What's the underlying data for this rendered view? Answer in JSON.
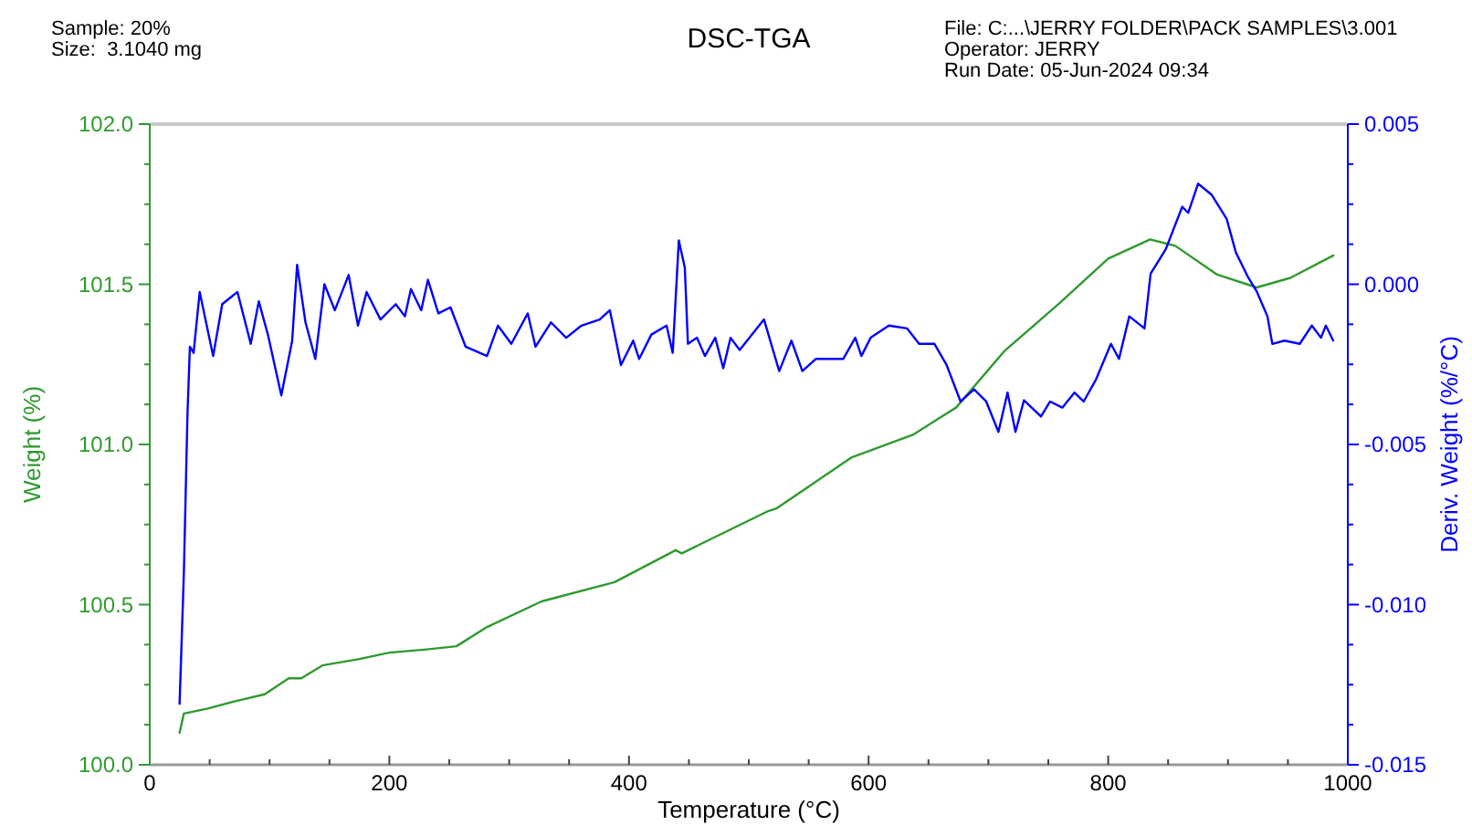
{
  "chart_data": {
    "type": "line",
    "title": "DSC-TGA",
    "xlabel": "Temperature (°C)",
    "ylabel": "Weight (%)",
    "y2label": "Deriv. Weight (%/°C)",
    "annotations": [
      "Sample: 20%",
      "Size:  3.1040 mg",
      "File: C:...\\JERRY FOLDER\\PACK SAMPLES\\3.001",
      "Operator: JERRY",
      "Run Date: 05-Jun-2024 09:34"
    ],
    "xlim": [
      0,
      1000
    ],
    "xticks": [
      0,
      {
        "value": 50,
        "label": null
      },
      {
        "value": 100,
        "label": null
      },
      {
        "value": 150,
        "label": null
      },
      200,
      {
        "value": 250,
        "label": null
      },
      {
        "value": 300,
        "label": null
      },
      {
        "value": 350,
        "label": null
      },
      400,
      {
        "value": 450,
        "label": null
      },
      {
        "value": 500,
        "label": null
      },
      {
        "value": 550,
        "label": null
      },
      600,
      {
        "value": 650,
        "label": null
      },
      {
        "value": 700,
        "label": null
      },
      {
        "value": 750,
        "label": null
      },
      800,
      {
        "value": 850,
        "label": null
      },
      {
        "value": 900,
        "label": null
      },
      {
        "value": 950,
        "label": null
      },
      1000
    ],
    "ylim": [
      100,
      102
    ],
    "yticks": [
      {
        "value": 100,
        "label": "100.0"
      },
      {
        "value": 100.125,
        "label": null
      },
      {
        "value": 100.25,
        "label": null
      },
      {
        "value": 100.375,
        "label": null
      },
      {
        "value": 100.5,
        "label": "100.5"
      },
      {
        "value": 100.625,
        "label": null
      },
      {
        "value": 100.75,
        "label": null
      },
      {
        "value": 100.875,
        "label": null
      },
      {
        "value": 101,
        "label": "101.0"
      },
      {
        "value": 101.125,
        "label": null
      },
      {
        "value": 101.25,
        "label": null
      },
      {
        "value": 101.375,
        "label": null
      },
      {
        "value": 101.5,
        "label": "101.5"
      },
      {
        "value": 101.625,
        "label": null
      },
      {
        "value": 101.75,
        "label": null
      },
      {
        "value": 101.875,
        "label": null
      },
      {
        "value": 102,
        "label": "102.0"
      }
    ],
    "y2lim": [
      -0.015,
      0.005
    ],
    "y2ticks": [
      {
        "value": -0.015,
        "label": "-0.015"
      },
      {
        "value": -0.01375,
        "label": null
      },
      {
        "value": -0.0125,
        "label": null
      },
      {
        "value": -0.01125,
        "label": null
      },
      {
        "value": -0.01,
        "label": "-0.010"
      },
      {
        "value": -0.00875,
        "label": null
      },
      {
        "value": -0.0075,
        "label": null
      },
      {
        "value": -0.00625,
        "label": null
      },
      {
        "value": -0.005,
        "label": "-0.005"
      },
      {
        "value": -0.00375,
        "label": null
      },
      {
        "value": -0.0025,
        "label": null
      },
      {
        "value": -0.00125,
        "label": null
      },
      {
        "value": 0,
        "label": "0.000"
      },
      {
        "value": 0.00125,
        "label": null
      },
      {
        "value": 0.0025,
        "label": null
      },
      {
        "value": 0.00375,
        "label": null
      },
      {
        "value": 0.005,
        "label": "0.005"
      }
    ],
    "grid": false,
    "marker": "none",
    "line_style": "solid",
    "series": [
      {
        "color": "#2e9a2e",
        "x": [
          24.9,
          28.5,
          47.7,
          73,
          96,
          116,
          126.5,
          144,
          175,
          200,
          231,
          256,
          281.5,
          327,
          388,
          439,
          444,
          485,
          515,
          523,
          586,
          637,
          673,
          713,
          759,
          800,
          835,
          856,
          891,
          924,
          952,
          988
        ],
        "values": [
          100.1,
          100.16,
          100.175,
          100.2,
          100.22,
          100.27,
          100.27,
          100.31,
          100.33,
          100.35,
          100.36,
          100.37,
          100.43,
          100.51,
          100.57,
          100.67,
          100.66,
          100.735,
          100.79,
          100.8,
          100.96,
          101.03,
          101.115,
          101.29,
          101.44,
          101.58,
          101.64,
          101.62,
          101.53,
          101.49,
          101.52,
          101.59
        ]
      },
      {
        "color": "#0000ff",
        "axis": "y2",
        "x": [
          24.9,
          28.5,
          31.5,
          33.5,
          36.6,
          41.7,
          52.9,
          60.5,
          73.2,
          84.3,
          91,
          98.6,
          109.8,
          118.9,
          123,
          130,
          138.2,
          145.8,
          154.5,
          166,
          173.8,
          181,
          192.6,
          205.3,
          213,
          218,
          226.6,
          232.2,
          240.9,
          251,
          263.7,
          281.5,
          290.6,
          301.8,
          315.5,
          322,
          334.9,
          347.6,
          360.3,
          375.5,
          384.1,
          393.3,
          403.5,
          408.5,
          418.7,
          431.4,
          436.5,
          441.6,
          446.6,
          449.2,
          456.8,
          463.4,
          472,
          478.7,
          484.8,
          492.4,
          512.7,
          525.4,
          535.6,
          544.7,
          555.9,
          578.8,
          588.9,
          594,
          601.7,
          616.9,
          632.2,
          642.2,
          655,
          665.1,
          676.8,
          688,
          698.2,
          708.4,
          716,
          722.6,
          729.7,
          743.9,
          751.5,
          761.7,
          771.8,
          779.5,
          789.6,
          802.3,
          809,
          817.6,
          830.3,
          835.4,
          848,
          861.8,
          866.8,
          875,
          886.2,
          898.9,
          906.5,
          916.6,
          924.2,
          932.9,
          937,
          947.1,
          959.9,
          970,
          977.6,
          981.7,
          987.8
        ],
        "values": [
          -0.0131,
          -0.00898,
          -0.00404,
          -0.00195,
          -0.00214,
          -0.00024,
          -0.00224,
          -0.00062,
          -0.00024,
          -0.00186,
          -0.00053,
          -0.00157,
          -0.00347,
          -0.00176,
          0.00061,
          -0.00119,
          -0.00233,
          0,
          -0.00081,
          0.00029,
          -0.00129,
          -0.00024,
          -0.0011,
          -0.00062,
          -0.001,
          -0.00015,
          -0.00081,
          0.00014,
          -0.00091,
          -0.00072,
          -0.00195,
          -0.00224,
          -0.00129,
          -0.00186,
          -0.00091,
          -0.00195,
          -0.00119,
          -0.00167,
          -0.00129,
          -0.0011,
          -0.00081,
          -0.00252,
          -0.00176,
          -0.00233,
          -0.00157,
          -0.00129,
          -0.00214,
          0.00137,
          0.00052,
          -0.00186,
          -0.00167,
          -0.00224,
          -0.00167,
          -0.00262,
          -0.00167,
          -0.00205,
          -0.0011,
          -0.00271,
          -0.00176,
          -0.00271,
          -0.00233,
          -0.00233,
          -0.00167,
          -0.00224,
          -0.00167,
          -0.00129,
          -0.00138,
          -0.00186,
          -0.00186,
          -0.00252,
          -0.00366,
          -0.00328,
          -0.00366,
          -0.00461,
          -0.00338,
          -0.00461,
          -0.00362,
          -0.00413,
          -0.00366,
          -0.00385,
          -0.00338,
          -0.00366,
          -0.00299,
          -0.00186,
          -0.00233,
          -0.001,
          -0.00138,
          0.00033,
          0.00109,
          0.00242,
          0.00223,
          0.00314,
          0.0028,
          0.00204,
          0.001,
          0.00023,
          -0.00024,
          -0.001,
          -0.00186,
          -0.00176,
          -0.00186,
          -0.00129,
          -0.00167,
          -0.00129,
          -0.00176
        ]
      }
    ]
  }
}
